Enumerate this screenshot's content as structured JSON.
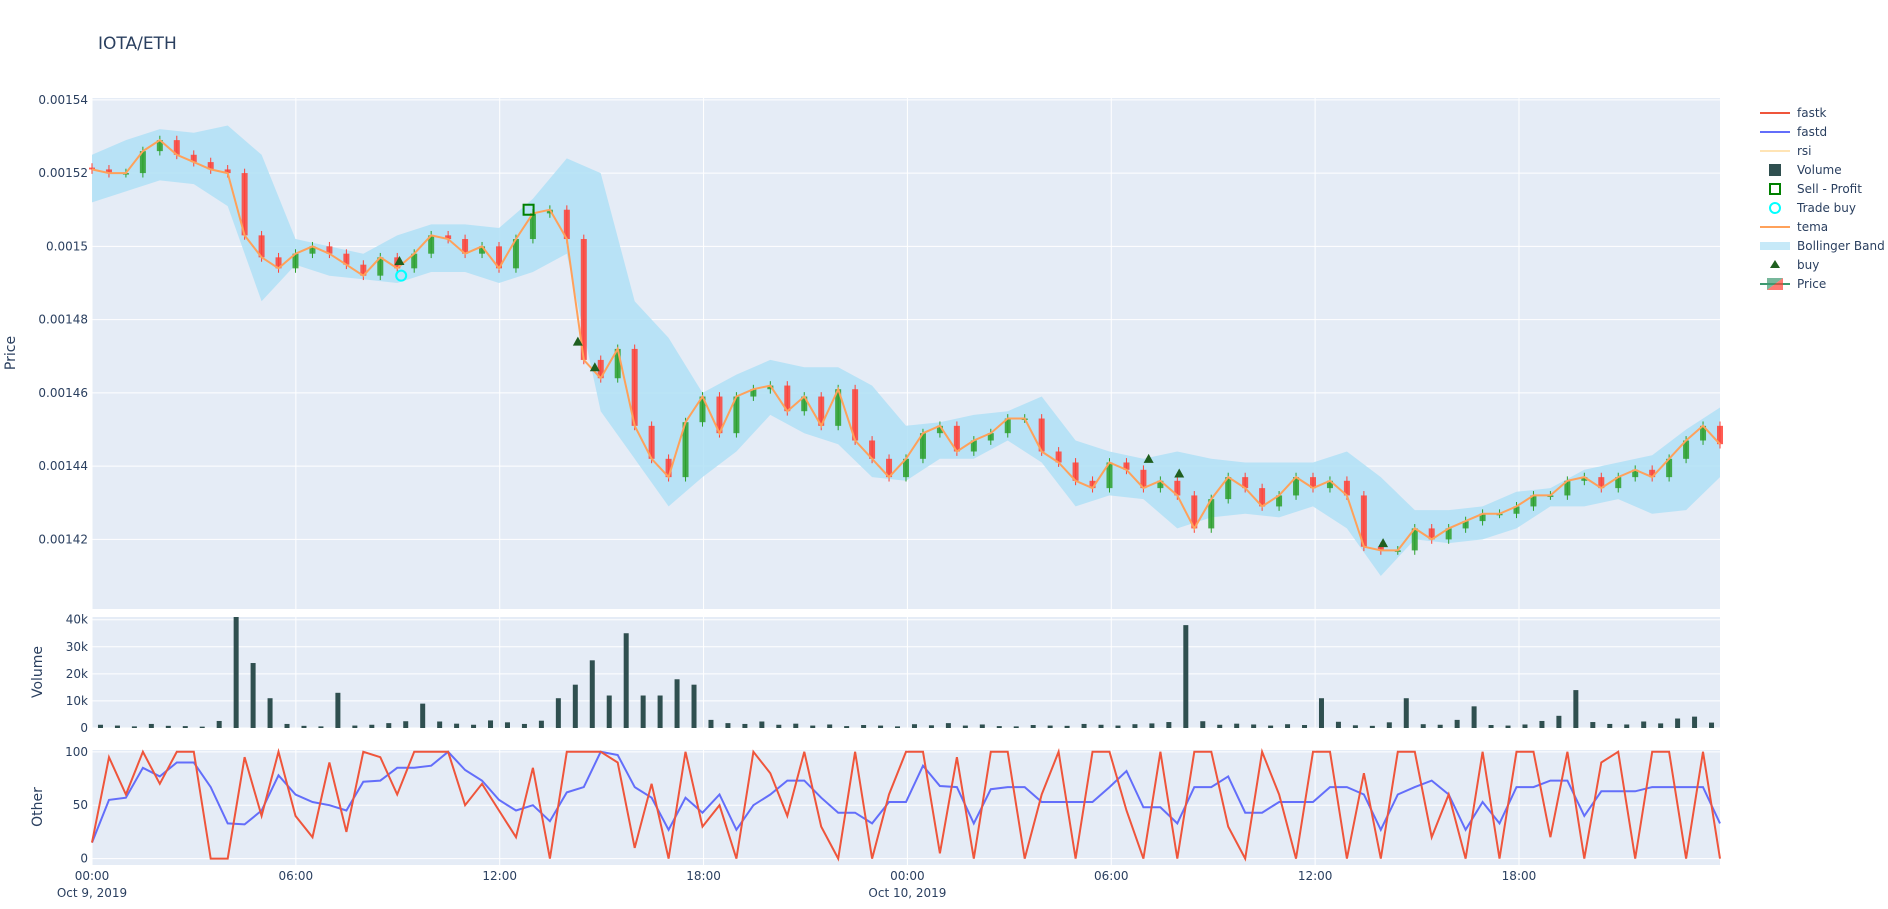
{
  "title": "IOTA/ETH",
  "colors": {
    "plot_bg": "#E5ECF6",
    "grid": "#ffffff",
    "text": "#2a3f5f",
    "fastk": "#EF553B",
    "fastd": "#636EFA",
    "rsi": "#FFE4B5",
    "volume": "#2F4F4F",
    "sell_profit": "#008000",
    "trade_buy": "#00FFFF",
    "tema": "#FFA15A",
    "bollinger": "#B0E0F6",
    "buy": "#1F5F1F",
    "increasing": "#2CA02C",
    "decreasing": "#FF4136"
  },
  "legend": [
    {
      "name": "fastk",
      "icon": "line",
      "color": "#EF553B"
    },
    {
      "name": "fastd",
      "icon": "line",
      "color": "#636EFA"
    },
    {
      "name": "rsi",
      "icon": "line-hidden",
      "color": "#FFE4B5"
    },
    {
      "name": "Volume",
      "icon": "square",
      "color": "#2F4F4F"
    },
    {
      "name": "Sell - Profit",
      "icon": "square-open",
      "color": "#008000"
    },
    {
      "name": "Trade buy",
      "icon": "circle-open",
      "color": "#00FFFF"
    },
    {
      "name": "tema",
      "icon": "line",
      "color": "#FFA15A"
    },
    {
      "name": "Bollinger Band",
      "icon": "band",
      "color": "#C6E9F8"
    },
    {
      "name": "buy",
      "icon": "triangle-up",
      "color": "#1F5F1F"
    },
    {
      "name": "Price",
      "icon": "candlestick",
      "color": "#2CA02C"
    }
  ],
  "chart_data": {
    "type": "candlestick",
    "x_range": [
      "2019-10-09 00:00",
      "2019-10-10 23:55"
    ],
    "x_ticks": [
      {
        "label": "00:00",
        "sub": "Oct 9, 2019",
        "t": "2019-10-09 00:00"
      },
      {
        "label": "06:00",
        "sub": "",
        "t": "2019-10-09 06:00"
      },
      {
        "label": "12:00",
        "sub": "",
        "t": "2019-10-09 12:00"
      },
      {
        "label": "18:00",
        "sub": "",
        "t": "2019-10-09 18:00"
      },
      {
        "label": "00:00",
        "sub": "Oct 10, 2019",
        "t": "2019-10-10 00:00"
      },
      {
        "label": "06:00",
        "sub": "",
        "t": "2019-10-10 06:00"
      },
      {
        "label": "12:00",
        "sub": "",
        "t": "2019-10-10 12:00"
      },
      {
        "label": "18:00",
        "sub": "",
        "t": "2019-10-10 18:00"
      }
    ],
    "panels": {
      "price": {
        "ylabel": "Price",
        "ylim": [
          0.001401,
          0.0015405
        ],
        "ticks": [
          0.00142,
          0.00144,
          0.00146,
          0.00148,
          0.0015,
          0.00152,
          0.00154
        ],
        "tick_labels": [
          "0.00142",
          "0.00144",
          "0.00146",
          "0.00148",
          "0.0015",
          "0.00152",
          "0.00154"
        ]
      },
      "volume": {
        "ylabel": "Volume",
        "ylim": [
          0,
          41000
        ],
        "ticks": [
          0,
          10000,
          20000,
          30000,
          40000
        ],
        "tick_labels": [
          "0",
          "10k",
          "20k",
          "30k",
          "40k"
        ]
      },
      "other": {
        "ylabel": "Other",
        "ylim": [
          -6,
          101.7
        ],
        "ticks": [
          0,
          50,
          100
        ],
        "tick_labels": [
          "0",
          "50",
          "100"
        ]
      }
    },
    "tema": [
      0.001521,
      0.00152,
      0.00152,
      0.001526,
      0.001529,
      0.001525,
      0.001523,
      0.001521,
      0.00152,
      0.001503,
      0.001497,
      0.001494,
      0.001498,
      0.0015,
      0.001498,
      0.001495,
      0.001492,
      0.001497,
      0.001494,
      0.001498,
      0.001503,
      0.001502,
      0.001498,
      0.0015,
      0.001494,
      0.001502,
      0.001509,
      0.00151,
      0.001502,
      0.001469,
      0.001464,
      0.001472,
      0.001451,
      0.001442,
      0.001437,
      0.001452,
      0.001459,
      0.001449,
      0.001459,
      0.001461,
      0.001462,
      0.001455,
      0.001459,
      0.001451,
      0.001461,
      0.001447,
      0.001442,
      0.001437,
      0.001442,
      0.001449,
      0.001451,
      0.001444,
      0.001447,
      0.001449,
      0.001453,
      0.001453,
      0.001444,
      0.001441,
      0.001436,
      0.001434,
      0.001441,
      0.001439,
      0.001434,
      0.001436,
      0.001432,
      0.001423,
      0.001431,
      0.001437,
      0.001434,
      0.001429,
      0.001432,
      0.001437,
      0.001434,
      0.001436,
      0.001432,
      0.001418,
      0.001417,
      0.001417,
      0.001423,
      0.00142,
      0.001423,
      0.001425,
      0.001427,
      0.001427,
      0.001429,
      0.001432,
      0.001432,
      0.001436,
      0.001437,
      0.001434,
      0.001437,
      0.001439,
      0.001437,
      0.001442,
      0.001447,
      0.001451,
      0.001446
    ],
    "bollinger_upper": [
      0.001525,
      0.001529,
      0.001532,
      0.001531,
      0.001533,
      0.001525,
      0.001502,
      0.0015,
      0.001498,
      0.001503,
      0.001506,
      0.001506,
      0.001505,
      0.001513,
      0.001524,
      0.00152,
      0.001485,
      0.001475,
      0.00146,
      0.001465,
      0.001469,
      0.001467,
      0.001467,
      0.001462,
      0.001451,
      0.001452,
      0.001454,
      0.001455,
      0.001459,
      0.001447,
      0.001444,
      0.001442,
      0.001444,
      0.001442,
      0.001441,
      0.001441,
      0.001441,
      0.001444,
      0.001437,
      0.001428,
      0.001428,
      0.001429,
      0.001433,
      0.001434,
      0.001439,
      0.001441,
      0.001443,
      0.00145,
      0.001456
    ],
    "bollinger_lower": [
      0.001512,
      0.001515,
      0.001518,
      0.001517,
      0.001511,
      0.001485,
      0.001495,
      0.001492,
      0.001491,
      0.00149,
      0.001493,
      0.001493,
      0.00149,
      0.001493,
      0.001498,
      0.001455,
      0.001442,
      0.001429,
      0.001437,
      0.001444,
      0.001454,
      0.001449,
      0.001446,
      0.001437,
      0.001436,
      0.001442,
      0.001442,
      0.001447,
      0.001441,
      0.001429,
      0.001432,
      0.001431,
      0.001423,
      0.001426,
      0.001427,
      0.001426,
      0.001429,
      0.001423,
      0.00141,
      0.00142,
      0.001419,
      0.00142,
      0.001423,
      0.001429,
      0.001429,
      0.001431,
      0.001427,
      0.001428,
      0.001437
    ],
    "buy": [
      {
        "t": "2019-10-09 09:03",
        "y": 0.001496
      },
      {
        "t": "2019-10-09 14:18",
        "y": 0.001474
      },
      {
        "t": "2019-10-09 14:48",
        "y": 0.001467
      },
      {
        "t": "2019-10-10 07:06",
        "y": 0.001442
      },
      {
        "t": "2019-10-10 08:00",
        "y": 0.001438
      },
      {
        "t": "2019-10-10 14:00",
        "y": 0.001419
      }
    ],
    "trade_buy": [
      {
        "t": "2019-10-09 09:06",
        "y": 0.001492
      }
    ],
    "sell_profit": [
      {
        "t": "2019-10-09 12:51",
        "y": 0.00151
      }
    ],
    "volume": [
      1200,
      900,
      600,
      1500,
      800,
      700,
      500,
      2600,
      41000,
      24000,
      11000,
      1500,
      800,
      600,
      13000,
      900,
      1200,
      1800,
      2500,
      9000,
      2400,
      1600,
      1200,
      2800,
      2100,
      1500,
      2700,
      11000,
      16000,
      25000,
      12000,
      35000,
      12000,
      12000,
      18000,
      16000,
      3000,
      1800,
      1500,
      2400,
      1200,
      1600,
      900,
      1300,
      700,
      1100,
      900,
      600,
      1400,
      1000,
      1800,
      900,
      1300,
      700,
      600,
      1100,
      900,
      800,
      1500,
      1200,
      900,
      1400,
      1700,
      2200,
      38000,
      2500,
      1200,
      1600,
      1300,
      900,
      1400,
      1100,
      11000,
      2300,
      1000,
      800,
      2100,
      11000,
      1400,
      1200,
      3000,
      8000,
      1100,
      900,
      1300,
      2600,
      4500,
      14000,
      2200,
      1500,
      1300,
      2400,
      1700,
      3500,
      4200,
      2000
    ],
    "fastk": [
      15,
      95,
      60,
      100,
      70,
      100,
      100,
      0,
      0,
      95,
      40,
      100,
      40,
      20,
      90,
      25,
      100,
      95,
      60,
      100,
      100,
      100,
      50,
      70,
      45,
      20,
      85,
      0,
      100,
      100,
      100,
      90,
      10,
      70,
      0,
      100,
      30,
      50,
      0,
      100,
      80,
      40,
      100,
      30,
      0,
      100,
      0,
      60,
      100,
      100,
      5,
      95,
      0,
      100,
      100,
      0,
      60,
      100,
      0,
      100,
      100,
      45,
      0,
      100,
      0,
      100,
      100,
      30,
      0,
      100,
      60,
      0,
      100,
      100,
      0,
      80,
      0,
      100,
      100,
      20,
      60,
      0,
      100,
      0,
      100,
      100,
      20,
      100,
      0,
      90,
      100,
      0,
      100,
      100,
      0,
      100,
      0
    ],
    "fastd": [
      15,
      55,
      57,
      85,
      77,
      90,
      90,
      67,
      33,
      32,
      45,
      78,
      60,
      53,
      50,
      45,
      72,
      73,
      85,
      85,
      87,
      100,
      83,
      73,
      55,
      45,
      50,
      35,
      62,
      67,
      100,
      97,
      67,
      57,
      27,
      57,
      43,
      60,
      27,
      50,
      60,
      73,
      73,
      57,
      43,
      43,
      33,
      53,
      53,
      87,
      68,
      67,
      33,
      65,
      67,
      67,
      53,
      53,
      53,
      53,
      67,
      82,
      48,
      48,
      33,
      67,
      67,
      77,
      43,
      43,
      53,
      53,
      53,
      67,
      67,
      60,
      27,
      60,
      67,
      73,
      60,
      27,
      53,
      33,
      67,
      67,
      73,
      73,
      40,
      63,
      63,
      63,
      67,
      67,
      67,
      67,
      33
    ]
  }
}
